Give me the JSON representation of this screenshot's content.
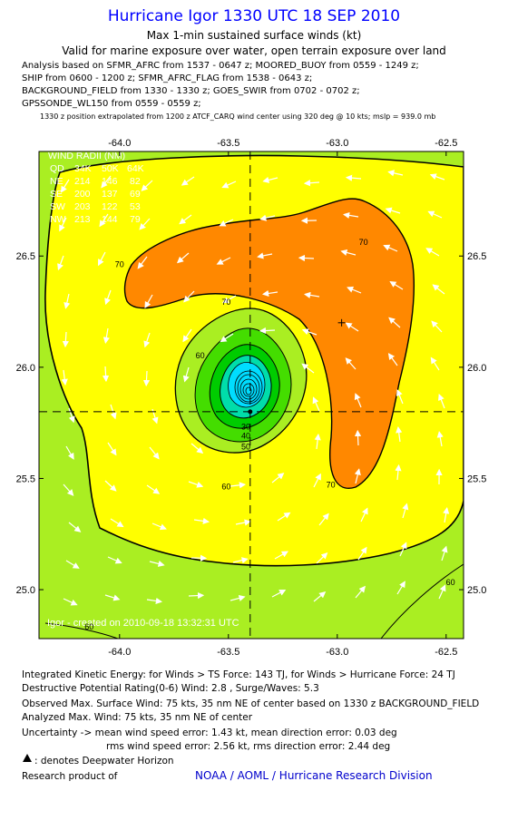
{
  "header": {
    "title": "Hurricane Igor 1330 UTC 18 SEP 2010",
    "subtitle1": "Max 1-min sustained surface winds (kt)",
    "subtitle2": "Valid for marine exposure over water, open terrain exposure over land"
  },
  "analysis_lines": [
    "Analysis based on SFMR_AFRC from 1537 - 0647 z; MOORED_BUOY from 0559 - 1249 z;",
    "SHIP from 0600 - 1200 z; SFMR_AFRC_FLAG from 1538 - 0643 z;",
    "BACKGROUND_FIELD from 1330 - 1330 z; GOES_SWIR from 0702 - 0702 z;",
    "GPSSONDE_WL150 from 0559 - 0559 z;"
  ],
  "position_note": "1330 z position extrapolated from 1200 z ATCF_CARQ wind center using 320 deg @ 10 kts; mslp = 939.0 mb",
  "chart_data": {
    "type": "contour",
    "xlim": [
      -64.37,
      -62.42
    ],
    "ylim": [
      24.78,
      26.97
    ],
    "x_ticks": [
      "-64.0",
      "-63.5",
      "-63.0",
      "-62.5"
    ],
    "x_tick_values": [
      -64.0,
      -63.5,
      -63.0,
      -62.5
    ],
    "y_ticks": [
      "26.5",
      "26.0",
      "25.5",
      "25.0"
    ],
    "y_tick_values": [
      26.5,
      26.0,
      25.5,
      25.0
    ],
    "storm_center": {
      "lon": -63.4,
      "lat": 25.8
    },
    "max_wind_marker": {
      "lon": -62.98,
      "lat": 26.2
    },
    "contour_labels": [
      {
        "text": "70",
        "lon": -63.51,
        "lat": 26.28
      },
      {
        "text": "70",
        "lon": -64.0,
        "lat": 26.45
      },
      {
        "text": "70",
        "lon": -62.88,
        "lat": 26.55
      },
      {
        "text": "70",
        "lon": -63.03,
        "lat": 25.46
      },
      {
        "text": "60",
        "lon": -63.63,
        "lat": 26.04
      },
      {
        "text": "60",
        "lon": -63.51,
        "lat": 25.45
      },
      {
        "text": "60",
        "lon": -62.48,
        "lat": 25.02
      },
      {
        "text": "60",
        "lon": -64.14,
        "lat": 24.82
      },
      {
        "text": "50",
        "lon": -63.42,
        "lat": 25.63
      },
      {
        "text": "40",
        "lon": -63.42,
        "lat": 25.68
      },
      {
        "text": "30",
        "lon": -63.42,
        "lat": 25.72
      }
    ],
    "wind_radii": {
      "header": "WIND RADII (NM)",
      "columns": [
        "QD",
        "34K",
        "50K",
        "64K"
      ],
      "rows": [
        [
          "NE",
          "214",
          "146",
          "82"
        ],
        [
          "SE",
          "200",
          "137",
          "69"
        ],
        [
          "SW",
          "203",
          "122",
          "53"
        ],
        [
          "NW",
          "213",
          "144",
          "79"
        ]
      ]
    },
    "credit": "Igor - created on 2010-09-18 13:32:31 UTC"
  },
  "stats": {
    "ike": "Integrated Kinetic Energy:  for Winds > TS Force: 143 TJ,  for Winds > Hurricane Force: 24 TJ",
    "dpr": "Destructive Potential Rating(0-6)   Wind: 2.8 , Surge/Waves: 5.3",
    "observed": "Observed Max. Surface Wind: 75 kts, 35 nm NE of center based on 1330 z BACKGROUND_FIELD",
    "analyzed": "Analyzed Max. Wind: 75 kts, 35 nm NE of center",
    "uncertainty1": "Uncertainty -> mean wind speed error: 1.43 kt,   mean direction error: 0.03 deg",
    "uncertainty2": "rms wind speed error: 2.56 kt,    rms direction error: 2.44 deg",
    "legend_deepwater": ": denotes Deepwater Horizon",
    "research": "Research product of",
    "org": "NOAA / AOML / Hurricane Research Division"
  },
  "colors": {
    "title": "#0000ff",
    "ts_green": "#aaee22",
    "yellow": "#ffff00",
    "orange": "#ff8800",
    "green": "#00cc00",
    "cyan": "#00ddff",
    "org": "#0000cc"
  }
}
